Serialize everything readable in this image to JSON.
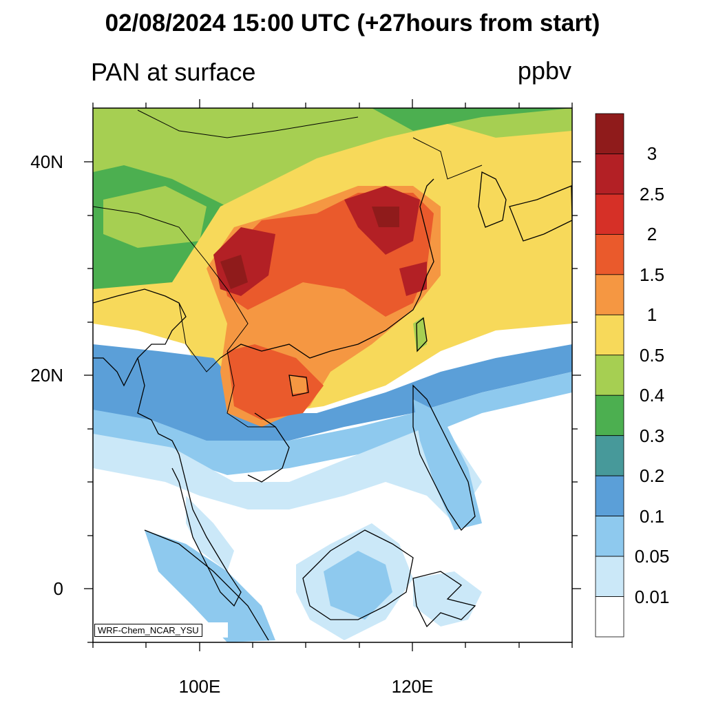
{
  "title": "02/08/2024 15:00 UTC (+27hours from start)",
  "left_label": "PAN at surface",
  "units": "ppbv",
  "credit": "WRF-Chem_NCAR_YSU",
  "lat_labels": [
    "40N",
    "20N",
    "0"
  ],
  "lon_labels": [
    "100E",
    "120E"
  ],
  "colorbar": {
    "labels": [
      "3",
      "2.5",
      "2",
      "1.5",
      "1",
      "0.5",
      "0.4",
      "0.3",
      "0.2",
      "0.1",
      "0.05",
      "0.01"
    ],
    "colors": [
      "#8f1b1b",
      "#b32025",
      "#d63027",
      "#ea5a2c",
      "#f59742",
      "#f7d95a",
      "#a6cf52",
      "#4caf50",
      "#47999a",
      "#5b9fd8",
      "#8ec9ee",
      "#cbe8f8",
      "#ffffff"
    ]
  },
  "ocean_color": "#ffffff",
  "coast_color": "#000000"
}
